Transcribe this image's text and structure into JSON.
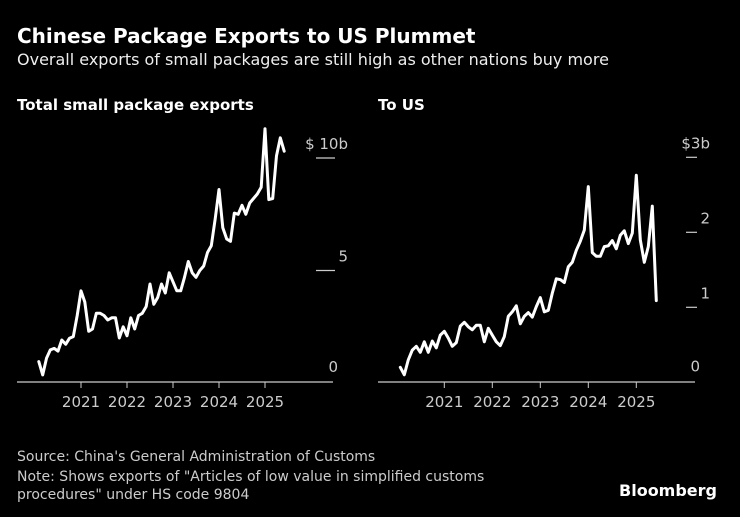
{
  "title": "Chinese Package Exports to US Plummet",
  "subtitle": "Overall exports of small packages are still high as other nations buy more",
  "footer": {
    "source": "Source: China's General Administration of Customs",
    "note_line1": "Note: Shows exports of \"Articles of low value in simplified customs",
    "note_line2": "procedures\" under HS code 9804",
    "brand": "Bloomberg"
  },
  "colors": {
    "background": "#000000",
    "line": "#ffffff",
    "axis": "#cccccc"
  },
  "chart_data": [
    {
      "type": "line",
      "title": "Total small package exports",
      "x_start": "2020-02",
      "x_frequency": "monthly",
      "x_end": "2025-06",
      "x_ticks": [
        "2021",
        "2022",
        "2023",
        "2024",
        "2025"
      ],
      "y_ticks": [
        {
          "value": 0,
          "label": "0"
        },
        {
          "value": 5,
          "label": "5"
        },
        {
          "value": 10,
          "label": "$ 10b"
        }
      ],
      "ylim": [
        0,
        11.5
      ],
      "grid": false,
      "values": [
        0.95,
        0.36,
        1.1,
        1.47,
        1.54,
        1.42,
        1.91,
        1.72,
        1.99,
        2.06,
        3.0,
        4.1,
        3.6,
        2.3,
        2.4,
        3.1,
        3.1,
        3.0,
        2.8,
        2.9,
        2.9,
        2.0,
        2.5,
        2.1,
        2.9,
        2.4,
        3.0,
        3.1,
        3.4,
        4.4,
        3.5,
        3.8,
        4.4,
        4.0,
        4.9,
        4.5,
        4.1,
        4.1,
        4.7,
        5.4,
        4.9,
        4.7,
        5.0,
        5.2,
        5.8,
        6.1,
        7.3,
        8.6,
        6.9,
        6.4,
        6.3,
        7.55,
        7.5,
        7.9,
        7.5,
        8.0,
        8.2,
        8.4,
        8.7,
        11.3,
        8.15,
        8.2,
        10.1,
        10.9,
        10.3
      ]
    },
    {
      "type": "line",
      "title": "To US",
      "x_start": "2020-02",
      "x_frequency": "monthly",
      "x_end": "2025-06",
      "x_ticks": [
        "2021",
        "2022",
        "2023",
        "2024",
        "2025"
      ],
      "y_ticks": [
        {
          "value": 0,
          "label": "0"
        },
        {
          "value": 1,
          "label": "1"
        },
        {
          "value": 2,
          "label": "2"
        },
        {
          "value": 3,
          "label": "$3b"
        }
      ],
      "ylim": [
        0,
        3.2
      ],
      "grid": false,
      "values": [
        0.2,
        0.1,
        0.3,
        0.43,
        0.48,
        0.4,
        0.54,
        0.4,
        0.55,
        0.46,
        0.63,
        0.68,
        0.59,
        0.48,
        0.53,
        0.75,
        0.8,
        0.74,
        0.7,
        0.76,
        0.76,
        0.54,
        0.72,
        0.63,
        0.54,
        0.49,
        0.61,
        0.88,
        0.94,
        1.02,
        0.78,
        0.88,
        0.93,
        0.87,
        1.01,
        1.13,
        0.94,
        0.96,
        1.19,
        1.38,
        1.37,
        1.33,
        1.54,
        1.6,
        1.76,
        1.88,
        2.03,
        2.61,
        1.73,
        1.68,
        1.68,
        1.81,
        1.82,
        1.89,
        1.78,
        1.96,
        2.02,
        1.85,
        1.99,
        2.76,
        1.9,
        1.6,
        1.81,
        2.35,
        1.09
      ]
    }
  ]
}
